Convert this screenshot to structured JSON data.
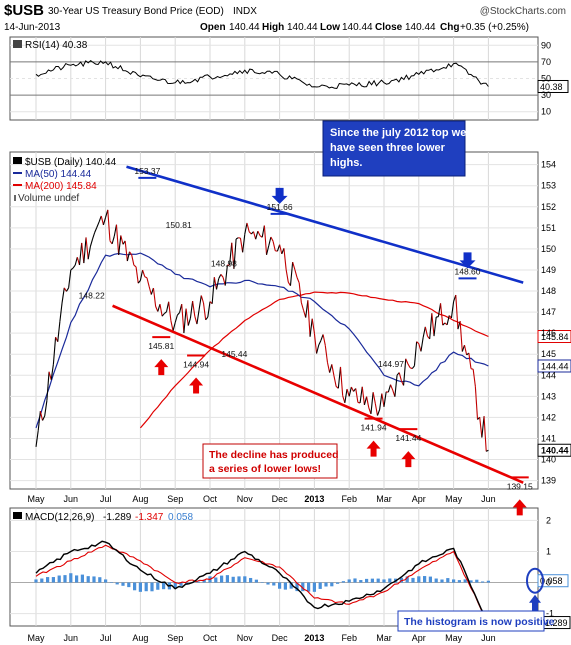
{
  "header": {
    "symbol": "$USB",
    "description": "30-Year US Treasury Bond Price (EOD)",
    "exchange": "INDX",
    "watermark": "@StockCharts.com",
    "date": "14-Jun-2013",
    "open_label": "Open",
    "open": "140.44",
    "high_label": "High",
    "high": "140.44",
    "low_label": "Low",
    "low": "140.44",
    "close_label": "Close",
    "close": "140.44",
    "chg_label": "Chg",
    "chg": "+0.35 (+0.25%)"
  },
  "rsi_panel": {
    "legend": "RSI(14) 40.38",
    "current_value": "40.38",
    "y_ticks": [
      "90",
      "70",
      "50",
      "30",
      "10"
    ]
  },
  "price_panel": {
    "legend_symbol": "$USB (Daily) 140.44",
    "legend_ma50": "MA(50) 144.44",
    "legend_ma200": "MA(200) 145.84",
    "legend_volume": "Volume undef",
    "y_ticks": [
      "154",
      "153",
      "152",
      "151",
      "150",
      "149",
      "148",
      "147",
      "146",
      "145",
      "144",
      "143",
      "142",
      "141",
      "140",
      "139"
    ],
    "last_price_tag": "140.44",
    "ma50_tag": "144.44",
    "ma200_tag": "145.84",
    "price_labels": [
      "153.37",
      "150.81",
      "148.98",
      "151.66",
      "148.60",
      "148.22",
      "145.81",
      "144.94",
      "145.44",
      "144.97",
      "141.94",
      "141.44",
      "139.15"
    ],
    "note_top": "Since the july 2012 top we have seen three lower highs.",
    "note_bottom": "The decline has produced a series of lower lows!"
  },
  "macd_panel": {
    "legend_name": "MACD(12,26,9)",
    "legend_macd": "-1.289",
    "legend_signal": "-1.347",
    "legend_hist": "0.058",
    "y_ticks": [
      "2",
      "1",
      "0",
      "-1"
    ],
    "hist_tag": "0.058",
    "macd_tag": "-1.289",
    "note": "The histogram is now positive"
  },
  "x_axis": {
    "labels": [
      "May",
      "Jun",
      "Jul",
      "Aug",
      "Sep",
      "Oct",
      "Nov",
      "Dec",
      "2013",
      "Feb",
      "Mar",
      "Apr",
      "May",
      "Jun"
    ]
  },
  "colors": {
    "price": "#000000",
    "down_bars": "#c00000",
    "ma50": "#1a2a9a",
    "ma200": "#e00000",
    "resistance_line": "#1030c8",
    "support_line": "#e80000",
    "rsi_fill": "#2e7d32",
    "histogram": "#4a90d9",
    "note_box": "#1f3fbf"
  },
  "chart_data": [
    {
      "type": "line",
      "title": "$USB 30-Year US Treasury Bond Price (EOD)",
      "x_labels": [
        "May",
        "Jun",
        "Jul",
        "Aug",
        "Sep",
        "Oct",
        "Nov",
        "Dec",
        "2013",
        "Feb",
        "Mar",
        "Apr",
        "May",
        "Jun"
      ],
      "ylim": [
        138.6,
        154.6
      ],
      "series": [
        {
          "name": "$USB (Daily)",
          "x": [
            "May",
            "Jun",
            "Jul",
            "Aug",
            "Sep",
            "Oct",
            "Nov",
            "Dec",
            "2013",
            "Feb",
            "Mar",
            "Apr",
            "May",
            "Jun"
          ],
          "values": [
            140.6,
            149.0,
            151.5,
            148.5,
            146.5,
            147.5,
            150.7,
            150.2,
            146.0,
            143.0,
            142.5,
            145.5,
            147.5,
            140.44
          ]
        },
        {
          "name": "MA(50)",
          "values": [
            141.5,
            146.5,
            149.7,
            149.8,
            148.8,
            148.2,
            148.5,
            148.2,
            147.5,
            146.2,
            144.0,
            143.5,
            145.1,
            144.44
          ]
        },
        {
          "name": "MA(200)",
          "values": [
            null,
            null,
            null,
            141.5,
            143.5,
            145.2,
            146.6,
            147.6,
            147.95,
            147.9,
            147.6,
            147.4,
            146.6,
            145.84
          ]
        }
      ],
      "annotations": [
        {
          "text": "153.37",
          "x": 3.2,
          "y": 153.37
        },
        {
          "text": "150.81",
          "x": 4.1,
          "y": 150.81
        },
        {
          "text": "148.98",
          "x": 5.4,
          "y": 148.98
        },
        {
          "text": "151.66",
          "x": 7.0,
          "y": 151.66
        },
        {
          "text": "148.60",
          "x": 12.4,
          "y": 148.6
        },
        {
          "text": "148.22",
          "x": 1.6,
          "y": 148.22
        },
        {
          "text": "145.81",
          "x": 3.6,
          "y": 145.81
        },
        {
          "text": "144.94",
          "x": 4.6,
          "y": 144.94
        },
        {
          "text": "145.44",
          "x": 5.7,
          "y": 145.44
        },
        {
          "text": "144.97",
          "x": 10.2,
          "y": 144.97
        },
        {
          "text": "141.94",
          "x": 9.7,
          "y": 141.94
        },
        {
          "text": "141.44",
          "x": 10.7,
          "y": 141.44
        },
        {
          "text": "139.15",
          "x": 13.9,
          "y": 139.15
        }
      ],
      "trendlines": [
        {
          "name": "resistance",
          "from": [
            2.6,
            153.9
          ],
          "to": [
            14.0,
            148.4
          ]
        },
        {
          "name": "support",
          "from": [
            2.2,
            147.3
          ],
          "to": [
            14.0,
            138.9
          ]
        }
      ]
    },
    {
      "type": "line",
      "title": "RSI(14)",
      "ylim": [
        0,
        100
      ],
      "series": [
        {
          "name": "RSI(14)",
          "values": [
            55,
            66,
            70,
            52,
            45,
            52,
            60,
            55,
            40,
            42,
            45,
            55,
            68,
            40.38
          ]
        }
      ]
    },
    {
      "type": "line",
      "title": "MACD(12,26,9)",
      "ylim": [
        -1.4,
        2.4
      ],
      "series": [
        {
          "name": "MACD",
          "values": [
            0.3,
            1.0,
            1.3,
            0.4,
            -0.2,
            0.3,
            1.0,
            0.3,
            -0.8,
            -0.6,
            -0.2,
            0.6,
            1.1,
            -1.289
          ]
        },
        {
          "name": "Signal",
          "values": [
            0.2,
            0.7,
            1.2,
            0.7,
            0.0,
            0.1,
            0.8,
            0.5,
            -0.5,
            -0.7,
            -0.3,
            0.4,
            1.0,
            -1.347
          ]
        },
        {
          "name": "Histogram",
          "values": [
            0.1,
            0.3,
            0.1,
            -0.3,
            -0.2,
            0.2,
            0.2,
            -0.2,
            -0.3,
            0.1,
            0.1,
            0.2,
            0.1,
            0.058
          ]
        }
      ]
    }
  ]
}
